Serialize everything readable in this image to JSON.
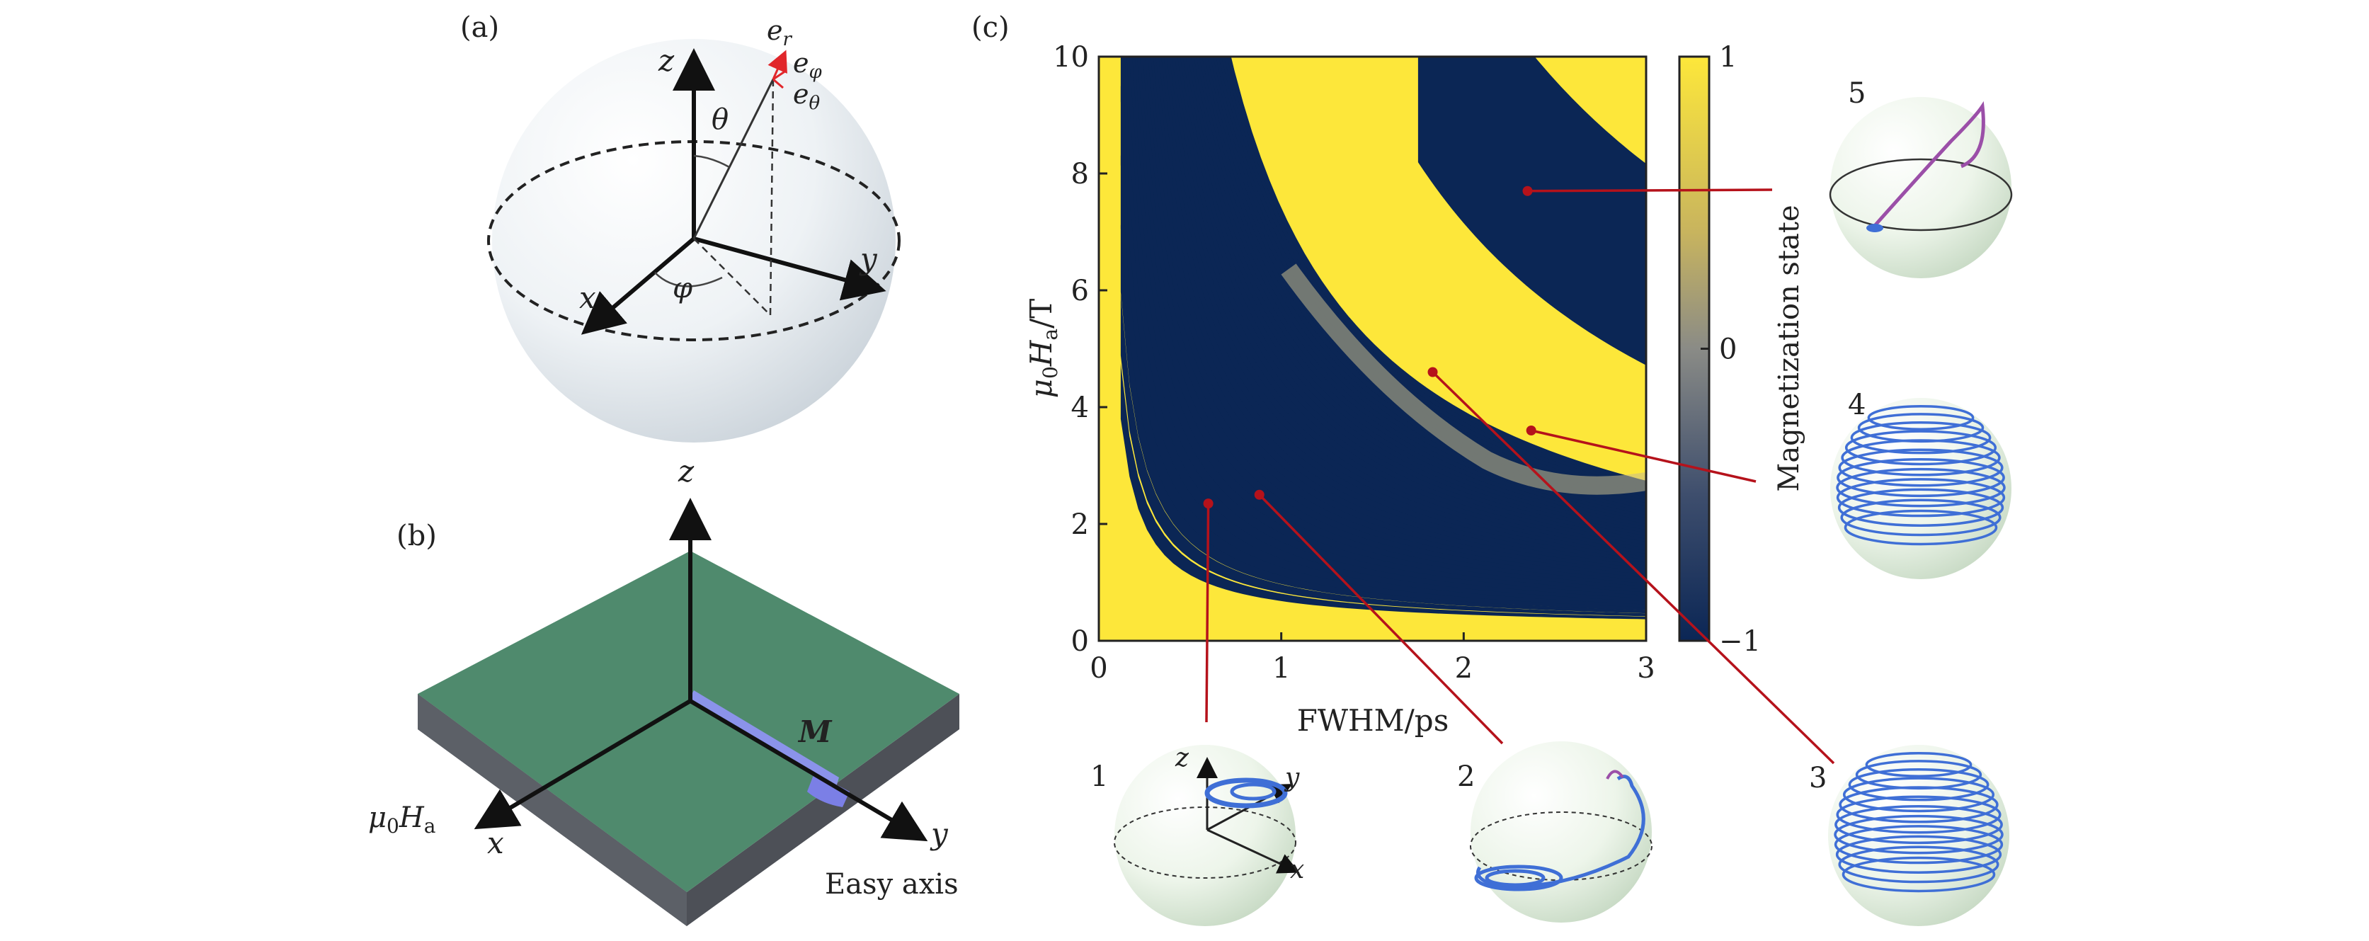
{
  "panels": {
    "a": {
      "label": "(a)",
      "axes": {
        "z": "z",
        "x": "x",
        "y": "y"
      },
      "angles": {
        "theta": "θ",
        "phi": "φ"
      },
      "basis": {
        "er": "e",
        "er_sub": "r",
        "ephi": "e",
        "ephi_sub": "φ",
        "etheta": "e",
        "etheta_sub": "θ"
      }
    },
    "b": {
      "label": "(b)",
      "axes": {
        "z": "z",
        "x": "x",
        "y": "y"
      },
      "field": "μ",
      "field_sub0": "0",
      "field_H": "H",
      "field_sub_a": "a",
      "magnetization": "M",
      "easy_axis": "Easy axis"
    },
    "c": {
      "label": "(c)"
    }
  },
  "insets": [
    {
      "number": "1",
      "axes": {
        "z": "z",
        "y": "y",
        "x": "x"
      }
    },
    {
      "number": "2"
    },
    {
      "number": "3"
    },
    {
      "number": "4"
    },
    {
      "number": "5"
    }
  ],
  "colors": {
    "yellow": "#fde73a",
    "navy": "#0b2655",
    "marker": "#b5121b",
    "green_film": "#4f8a6d",
    "trajectory": "#3f6fd6"
  },
  "chart_data": {
    "type": "heatmap",
    "xlabel": "FWHM/ps",
    "ylabel_parts": {
      "mu": "μ",
      "sub0": "0",
      "H": "H",
      "suba": "a",
      "unit": "/T"
    },
    "xlim": [
      0,
      3
    ],
    "ylim": [
      0,
      10
    ],
    "x_ticks": [
      "0",
      "1",
      "2",
      "3"
    ],
    "y_ticks": [
      "0",
      "2",
      "4",
      "6",
      "8",
      "10"
    ],
    "colorbar": {
      "label": "Magnetization state",
      "range": [
        -1,
        1
      ],
      "ticks": [
        "1",
        "0",
        "−1"
      ]
    },
    "markers": [
      {
        "x": 0.6,
        "y": 2.35,
        "inset": "1"
      },
      {
        "x": 0.88,
        "y": 2.5,
        "inset": "2"
      },
      {
        "x": 1.83,
        "y": 4.6,
        "inset": "3"
      },
      {
        "x": 2.37,
        "y": 3.6,
        "inset": "4"
      },
      {
        "x": 2.35,
        "y": 7.7,
        "inset": "5"
      }
    ]
  }
}
